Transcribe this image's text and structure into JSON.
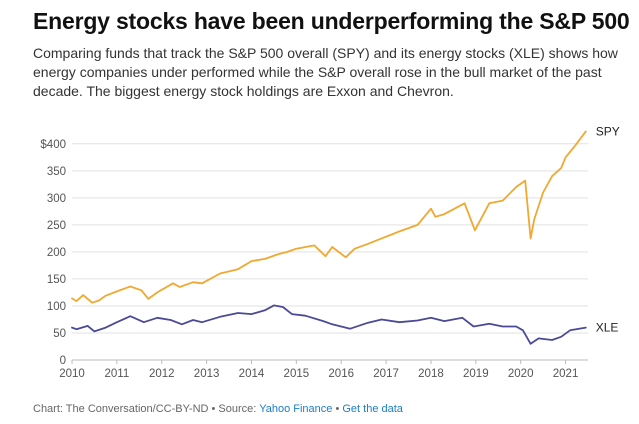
{
  "title": "Energy stocks have been underperforming the S&P 500",
  "subtitle": "Comparing funds that track the S&P 500 overall (SPY) and its energy stocks (XLE) shows how energy companies under performed while the S&P overall rose in the bull market of the past decade. The biggest energy stock holdings are Exxon and Chevron.",
  "footer": {
    "credit": "Chart: The Conversation/CC-BY-ND",
    "sep": " • Source: ",
    "source": "Yahoo Finance",
    "sep2": " • ",
    "getdata": "Get the data"
  },
  "colors": {
    "spy": "#f0a830",
    "xle": "#4a4a96",
    "grid": "#e2e2e2",
    "axis": "#bbbbbb"
  },
  "chart_data": {
    "type": "line",
    "title": "",
    "xlabel": "",
    "ylabel": "",
    "xlim": [
      2010,
      2021.5
    ],
    "ylim": [
      0,
      420
    ],
    "yticks": [
      {
        "v": 0,
        "label": "0"
      },
      {
        "v": 50,
        "label": "50"
      },
      {
        "v": 100,
        "label": "100"
      },
      {
        "v": 150,
        "label": "150"
      },
      {
        "v": 200,
        "label": "200"
      },
      {
        "v": 250,
        "label": "250"
      },
      {
        "v": 300,
        "label": "300"
      },
      {
        "v": 350,
        "label": "350"
      },
      {
        "v": 400,
        "label": "$400"
      }
    ],
    "xticks": [
      {
        "v": 2010,
        "label": "2010"
      },
      {
        "v": 2011,
        "label": "2011"
      },
      {
        "v": 2012,
        "label": "2012"
      },
      {
        "v": 2013,
        "label": "2013"
      },
      {
        "v": 2014,
        "label": "2014"
      },
      {
        "v": 2015,
        "label": "2015"
      },
      {
        "v": 2016,
        "label": "2016"
      },
      {
        "v": 2017,
        "label": "2017"
      },
      {
        "v": 2018,
        "label": "2018"
      },
      {
        "v": 2019,
        "label": "2019"
      },
      {
        "v": 2020,
        "label": "2020"
      },
      {
        "v": 2021,
        "label": "2021"
      }
    ],
    "grid": true,
    "series": [
      {
        "name": "SPY",
        "color": "#f0a830",
        "x": [
          2010.0,
          2010.1,
          2010.25,
          2010.45,
          2010.6,
          2010.75,
          2011.0,
          2011.3,
          2011.55,
          2011.7,
          2011.9,
          2012.25,
          2012.4,
          2012.7,
          2012.9,
          2013.3,
          2013.7,
          2014.0,
          2014.3,
          2014.6,
          2014.8,
          2015.0,
          2015.4,
          2015.65,
          2015.8,
          2016.1,
          2016.3,
          2016.6,
          2016.9,
          2017.3,
          2017.7,
          2018.0,
          2018.1,
          2018.3,
          2018.75,
          2018.98,
          2019.3,
          2019.6,
          2019.9,
          2020.1,
          2020.22,
          2020.3,
          2020.5,
          2020.7,
          2020.9,
          2021.0,
          2021.2,
          2021.45
        ],
        "values": [
          114,
          109,
          120,
          106,
          110,
          119,
          127,
          136,
          129,
          113,
          125,
          142,
          135,
          144,
          142,
          160,
          168,
          183,
          187,
          196,
          200,
          206,
          212,
          192,
          209,
          190,
          206,
          215,
          225,
          238,
          250,
          280,
          265,
          270,
          290,
          240,
          290,
          295,
          320,
          332,
          225,
          260,
          310,
          340,
          355,
          375,
          395,
          423
        ]
      },
      {
        "name": "XLE",
        "color": "#4a4a96",
        "x": [
          2010.0,
          2010.1,
          2010.35,
          2010.5,
          2010.75,
          2011.0,
          2011.3,
          2011.6,
          2011.9,
          2012.2,
          2012.45,
          2012.7,
          2012.9,
          2013.3,
          2013.7,
          2014.0,
          2014.3,
          2014.5,
          2014.7,
          2014.9,
          2015.2,
          2015.6,
          2015.8,
          2016.0,
          2016.2,
          2016.6,
          2016.9,
          2017.3,
          2017.7,
          2018.0,
          2018.3,
          2018.7,
          2018.95,
          2019.3,
          2019.6,
          2019.9,
          2020.05,
          2020.22,
          2020.4,
          2020.7,
          2020.9,
          2021.1,
          2021.45
        ],
        "values": [
          60,
          57,
          63,
          53,
          60,
          70,
          81,
          70,
          78,
          74,
          66,
          74,
          70,
          80,
          87,
          85,
          92,
          101,
          98,
          85,
          82,
          72,
          66,
          62,
          58,
          69,
          75,
          70,
          73,
          78,
          72,
          78,
          62,
          67,
          62,
          62,
          55,
          30,
          40,
          37,
          43,
          55,
          60
        ]
      }
    ]
  }
}
